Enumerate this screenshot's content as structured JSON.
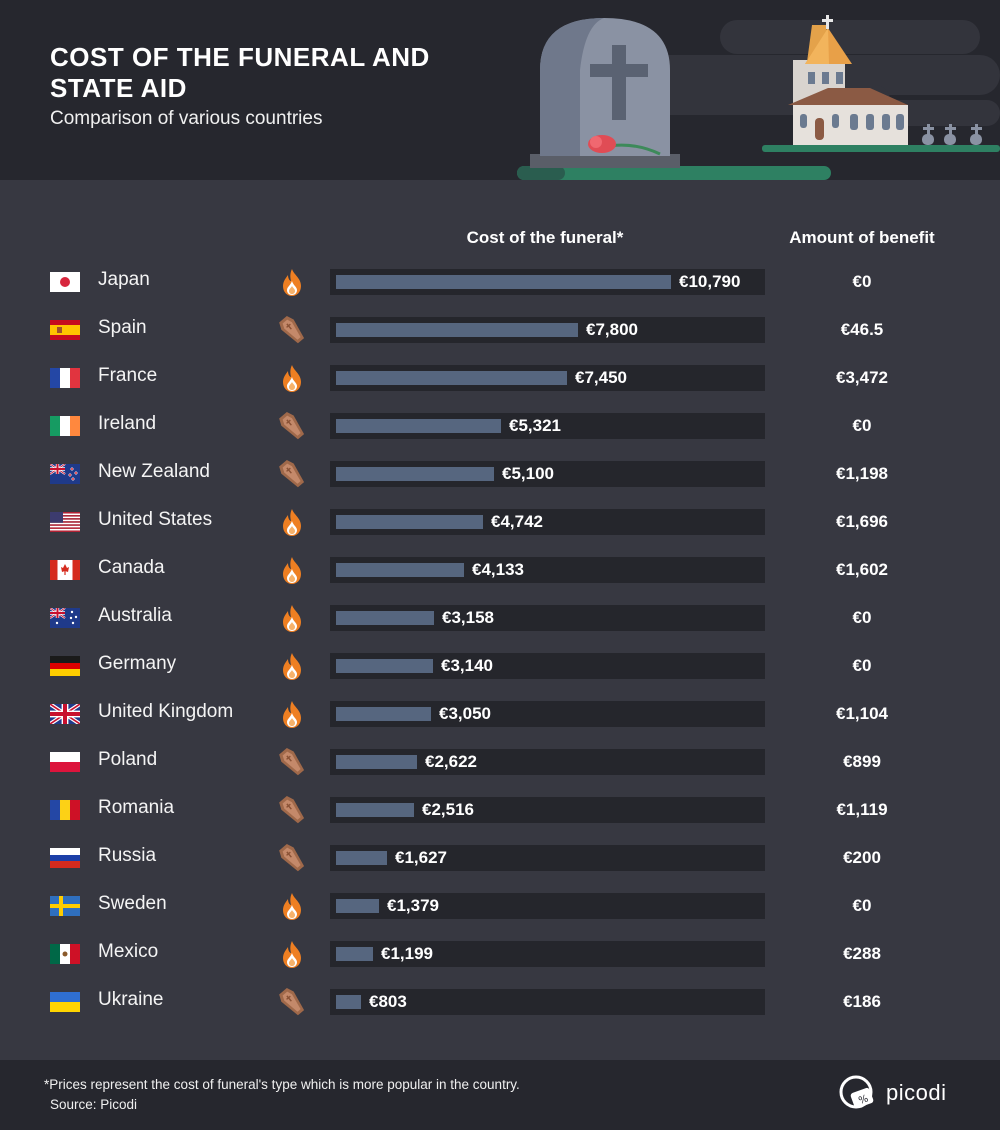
{
  "header": {
    "title": "COST OF THE FUNERAL AND STATE AID",
    "subtitle": "Comparison of various countries"
  },
  "columns": {
    "cost": "Cost of the funeral*",
    "benefit": "Amount of benefit"
  },
  "colors": {
    "background": "#373841",
    "header_bg": "#26272e",
    "track": "#25262c",
    "bar": "#56667f",
    "flame": "#ee7f22",
    "coffin": "#a0694a",
    "grass": "#2e8062"
  },
  "icons": {
    "cremation": "fire-icon",
    "burial": "coffin-icon"
  },
  "chart_data": {
    "type": "bar",
    "title": "COST OF THE FUNERAL AND STATE AID",
    "subtitle": "Comparison of various countries",
    "xlabel": "Cost of the funeral*",
    "ylabel": "",
    "xlim": [
      0,
      10790
    ],
    "categories": [
      "Japan",
      "Spain",
      "France",
      "Ireland",
      "New Zealand",
      "United States",
      "Canada",
      "Australia",
      "Germany",
      "United Kingdom",
      "Poland",
      "Romania",
      "Russia",
      "Sweden",
      "Mexico",
      "Ukraine"
    ],
    "series": [
      {
        "name": "Cost of the funeral*",
        "values": [
          10790,
          7800,
          7450,
          5321,
          5100,
          4742,
          4133,
          3158,
          3140,
          3050,
          2622,
          2516,
          1627,
          1379,
          1199,
          803
        ],
        "labels": [
          "€10,790",
          "€7,800",
          "€7,450",
          "€5,321",
          "€5,100",
          "€4,742",
          "€4,133",
          "€3,158",
          "€3,140",
          "€3,050",
          "€2,622",
          "€2,516",
          "€1,627",
          "€1,379",
          "€1,199",
          "€803"
        ]
      },
      {
        "name": "Amount of benefit",
        "values": [
          0,
          46.5,
          3472,
          0,
          1198,
          1696,
          1602,
          0,
          0,
          1104,
          899,
          1119,
          200,
          0,
          288,
          186
        ],
        "labels": [
          "€0",
          "€46.5",
          "€3,472",
          "€0",
          "€1,198",
          "€1,696",
          "€1,602",
          "€0",
          "€0",
          "€1,104",
          "€899",
          "€1,119",
          "€200",
          "€0",
          "€288",
          "€186"
        ]
      }
    ],
    "funeral_type": [
      "cremation",
      "burial",
      "cremation",
      "burial",
      "burial",
      "cremation",
      "cremation",
      "cremation",
      "cremation",
      "cremation",
      "burial",
      "burial",
      "burial",
      "cremation",
      "cremation",
      "burial"
    ],
    "flags": [
      "japan-flag",
      "spain-flag",
      "france-flag",
      "ireland-flag",
      "new-zealand-flag",
      "united-states-flag",
      "canada-flag",
      "australia-flag",
      "germany-flag",
      "united-kingdom-flag",
      "poland-flag",
      "romania-flag",
      "russia-flag",
      "sweden-flag",
      "mexico-flag",
      "ukraine-flag"
    ]
  },
  "footer": {
    "note": "*Prices represent the cost of funeral's type which is more popular in the country.",
    "source": "Source: Picodi",
    "brand": "picodi"
  }
}
